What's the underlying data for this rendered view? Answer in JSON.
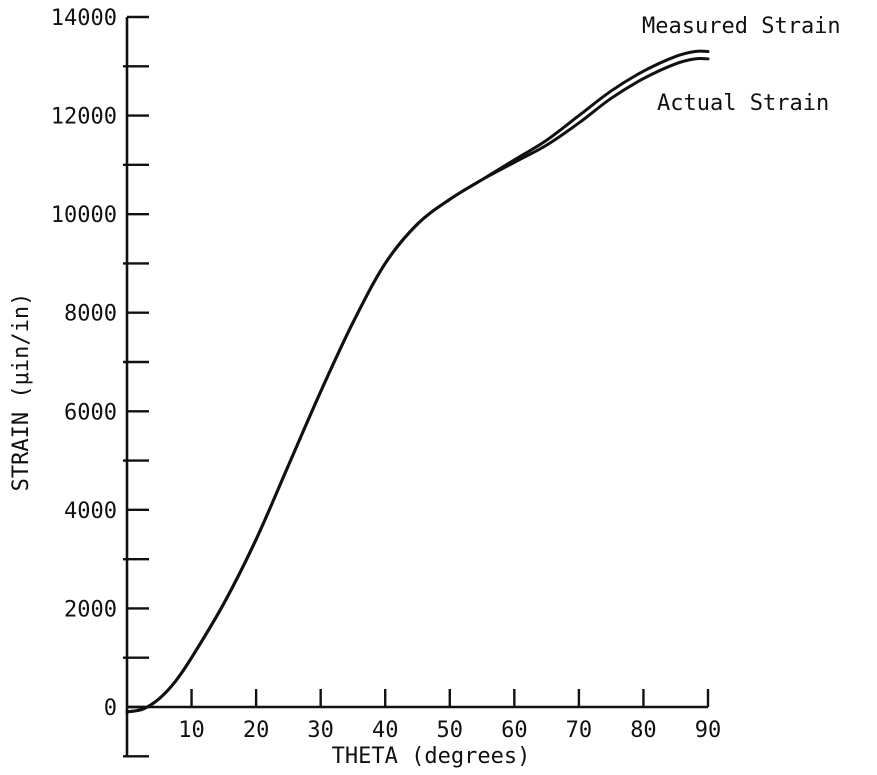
{
  "chart_data": {
    "type": "line",
    "xlabel": "THETA (degrees)",
    "ylabel": "STRAIN (μin/in)",
    "xlim": [
      0,
      90
    ],
    "ylim": [
      -1000,
      14000
    ],
    "x_ticks": [
      10,
      20,
      30,
      40,
      50,
      60,
      70,
      80,
      90
    ],
    "y_ticks": [
      0,
      2000,
      4000,
      6000,
      8000,
      10000,
      12000,
      14000
    ],
    "y_minor_ticks": [
      -1000,
      1000,
      3000,
      5000,
      7000,
      9000,
      11000,
      13000
    ],
    "grid": false,
    "line_color": "#111111",
    "series": [
      {
        "name": "Measured Strain",
        "x": [
          0,
          2.5,
          5,
          7.5,
          10,
          15,
          20,
          25,
          30,
          35,
          40,
          45,
          50,
          55,
          60,
          65,
          70,
          75,
          80,
          85,
          88,
          90
        ],
        "y": [
          -100,
          -40,
          170,
          520,
          1000,
          2100,
          3400,
          4900,
          6400,
          7800,
          9000,
          9800,
          10300,
          10700,
          11100,
          11500,
          12000,
          12500,
          12900,
          13200,
          13300,
          13300
        ]
      },
      {
        "name": "Actual Strain",
        "x": [
          0,
          2.5,
          5,
          7.5,
          10,
          15,
          20,
          25,
          30,
          35,
          40,
          45,
          50,
          55,
          60,
          65,
          70,
          75,
          80,
          85,
          88,
          90
        ],
        "y": [
          -100,
          -40,
          170,
          520,
          1000,
          2100,
          3400,
          4900,
          6400,
          7800,
          9000,
          9800,
          10300,
          10700,
          11050,
          11400,
          11850,
          12350,
          12750,
          13050,
          13150,
          13150
        ]
      }
    ]
  }
}
